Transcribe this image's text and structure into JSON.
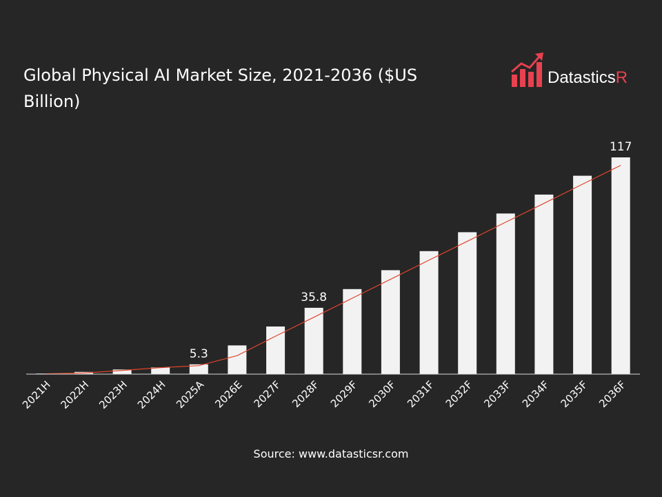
{
  "title": "Global Physical AI Market Size, 2021-2036 ($US Billion)",
  "logo": {
    "text_main": "Datastics",
    "text_accent": "R",
    "accent_color": "#e8414f"
  },
  "source": "Source: www.datasticsr.com",
  "colors": {
    "background": "#262626",
    "bar": "#f2f2f2",
    "trendline": "#e0452c",
    "text": "#ffffff"
  },
  "chart_data": {
    "type": "bar",
    "categories": [
      "2021H",
      "2022H",
      "2023H",
      "2024H",
      "2025A",
      "2026E",
      "2027F",
      "2028F",
      "2029F",
      "2030F",
      "2031F",
      "2032F",
      "2033F",
      "2034F",
      "2035F",
      "2036F"
    ],
    "values": [
      0.3,
      1.2,
      2.5,
      3.6,
      5.3,
      15.5,
      25.7,
      35.8,
      45.9,
      56.1,
      66.4,
      76.6,
      86.7,
      96.9,
      107.1,
      117
    ],
    "data_labels": [
      {
        "index": 4,
        "text": "5.3"
      },
      {
        "index": 7,
        "text": "35.8"
      },
      {
        "index": 15,
        "text": "117"
      }
    ],
    "trendline": {
      "type": "line",
      "values": [
        0.2,
        0.6,
        2.0,
        3.5,
        4.6,
        10.0,
        20.5,
        30.7,
        41.0,
        51.2,
        61.5,
        71.7,
        82.0,
        92.2,
        102.5,
        112.7
      ]
    },
    "xlabel": "",
    "ylabel": "",
    "ylim": [
      0,
      117
    ],
    "grid": false,
    "legend": "none"
  }
}
